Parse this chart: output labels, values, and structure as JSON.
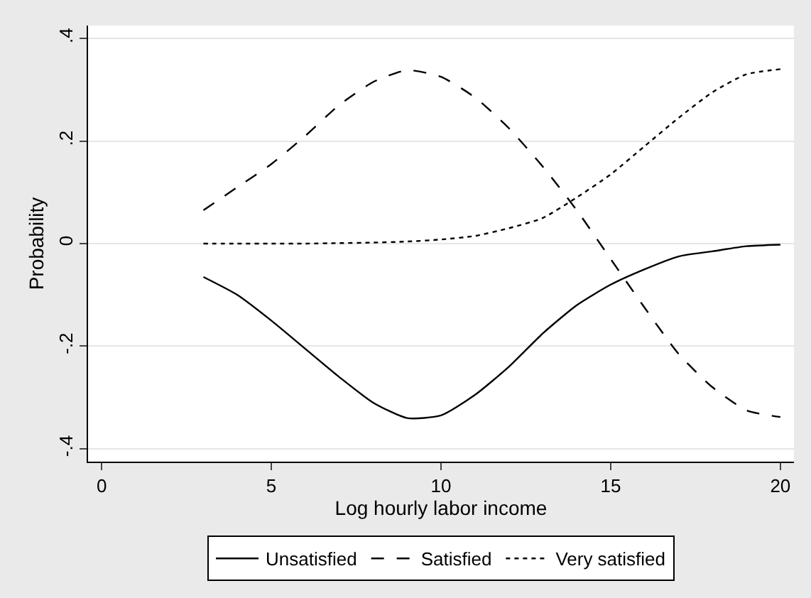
{
  "chart_data": {
    "type": "line",
    "xlabel": "Log hourly labor income",
    "ylabel": "Probability",
    "x": [
      3,
      4,
      5,
      6,
      7,
      8,
      9,
      10,
      11,
      12,
      13,
      14,
      15,
      16,
      17,
      18,
      19,
      20
    ],
    "series": [
      {
        "name": "Unsatisfied",
        "color": "#000000",
        "line_style": "solid",
        "values": [
          -0.065,
          -0.1,
          -0.15,
          -0.205,
          -0.26,
          -0.31,
          -0.34,
          -0.335,
          -0.295,
          -0.24,
          -0.175,
          -0.12,
          -0.08,
          -0.05,
          -0.025,
          -0.015,
          -0.005,
          -0.002
        ]
      },
      {
        "name": "Satisfied",
        "color": "#000000",
        "line_style": "dashed",
        "values": [
          0.065,
          0.11,
          0.155,
          0.21,
          0.27,
          0.315,
          0.338,
          0.325,
          0.285,
          0.225,
          0.15,
          0.065,
          -0.03,
          -0.125,
          -0.215,
          -0.28,
          -0.325,
          -0.338
        ]
      },
      {
        "name": "Very satisfied",
        "color": "#000000",
        "line_style": "dotted",
        "values": [
          0,
          0,
          0,
          0,
          0.001,
          0.002,
          0.004,
          0.008,
          0.015,
          0.03,
          0.05,
          0.09,
          0.135,
          0.19,
          0.245,
          0.295,
          0.33,
          0.34
        ]
      }
    ],
    "xlim": [
      -0.4,
      20.4
    ],
    "xticks": [
      0,
      5,
      10,
      15,
      20
    ],
    "ylim": [
      -0.425,
      0.425
    ],
    "yticks": [
      {
        "value": -0.4,
        "label": "-.4"
      },
      {
        "value": -0.2,
        "label": "-.2"
      },
      0,
      {
        "value": 0.2,
        "label": ".2"
      },
      {
        "value": 0.4,
        "label": ".4"
      }
    ],
    "grid": "y",
    "legend": "bottom",
    "marker": "none"
  }
}
